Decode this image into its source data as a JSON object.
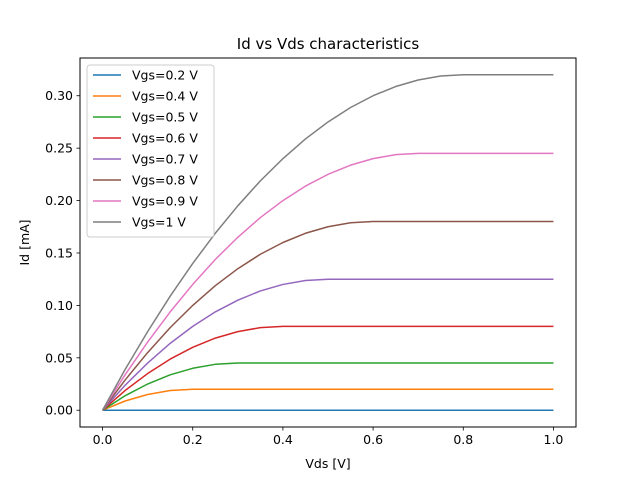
{
  "chart_data": {
    "type": "line",
    "title": "Id vs Vds characteristics",
    "xlabel": "Vds [V]",
    "ylabel": "Id [mA]",
    "xlim": [
      -0.05,
      1.05
    ],
    "ylim": [
      -0.016,
      0.336
    ],
    "x_ticks": [
      0.0,
      0.2,
      0.4,
      0.6,
      0.8,
      1.0
    ],
    "x_tick_labels": [
      "0.0",
      "0.2",
      "0.4",
      "0.6",
      "0.8",
      "1.0"
    ],
    "y_ticks": [
      0.0,
      0.05,
      0.1,
      0.15,
      0.2,
      0.25,
      0.3
    ],
    "y_tick_labels": [
      "0.00",
      "0.05",
      "0.10",
      "0.15",
      "0.20",
      "0.25",
      "0.30"
    ],
    "grid": false,
    "legend_position": "top-left",
    "x": [
      0.0,
      0.05,
      0.1,
      0.15,
      0.2,
      0.25,
      0.3,
      0.35,
      0.4,
      0.45,
      0.5,
      0.55,
      0.6,
      0.65,
      0.7,
      0.75,
      0.8,
      0.85,
      0.9,
      0.95,
      1.0
    ],
    "series": [
      {
        "name": "Vgs=0.2 V",
        "color": "#1f77b4",
        "values": [
          0.0,
          0.0,
          0.0,
          0.0,
          0.0,
          0.0,
          0.0,
          0.0,
          0.0,
          0.0,
          0.0,
          0.0,
          0.0,
          0.0,
          0.0,
          0.0,
          0.0,
          0.0,
          0.0,
          0.0,
          0.0
        ]
      },
      {
        "name": "Vgs=0.4 V",
        "color": "#ff7f0e",
        "values": [
          0.0,
          0.0088,
          0.015,
          0.0188,
          0.02,
          0.02,
          0.02,
          0.02,
          0.02,
          0.02,
          0.02,
          0.02,
          0.02,
          0.02,
          0.02,
          0.02,
          0.02,
          0.02,
          0.02,
          0.02,
          0.02
        ]
      },
      {
        "name": "Vgs=0.5 V",
        "color": "#2ca02c",
        "values": [
          0.0,
          0.0138,
          0.025,
          0.0338,
          0.04,
          0.0438,
          0.045,
          0.045,
          0.045,
          0.045,
          0.045,
          0.045,
          0.045,
          0.045,
          0.045,
          0.045,
          0.045,
          0.045,
          0.045,
          0.045,
          0.045
        ]
      },
      {
        "name": "Vgs=0.6 V",
        "color": "#d62728",
        "values": [
          0.0,
          0.0188,
          0.035,
          0.0488,
          0.06,
          0.0688,
          0.075,
          0.0788,
          0.08,
          0.08,
          0.08,
          0.08,
          0.08,
          0.08,
          0.08,
          0.08,
          0.08,
          0.08,
          0.08,
          0.08,
          0.08
        ]
      },
      {
        "name": "Vgs=0.7 V",
        "color": "#9467bd",
        "values": [
          0.0,
          0.0238,
          0.045,
          0.0638,
          0.08,
          0.0938,
          0.105,
          0.1138,
          0.12,
          0.1238,
          0.125,
          0.125,
          0.125,
          0.125,
          0.125,
          0.125,
          0.125,
          0.125,
          0.125,
          0.125,
          0.125
        ]
      },
      {
        "name": "Vgs=0.8 V",
        "color": "#8c564b",
        "values": [
          0.0,
          0.0288,
          0.055,
          0.0788,
          0.1,
          0.1188,
          0.135,
          0.1488,
          0.16,
          0.1688,
          0.175,
          0.1788,
          0.18,
          0.18,
          0.18,
          0.18,
          0.18,
          0.18,
          0.18,
          0.18,
          0.18
        ]
      },
      {
        "name": "Vgs=0.9 V",
        "color": "#e377c2",
        "values": [
          0.0,
          0.0338,
          0.065,
          0.0938,
          0.12,
          0.1438,
          0.165,
          0.1838,
          0.2,
          0.2138,
          0.225,
          0.2338,
          0.24,
          0.2438,
          0.245,
          0.245,
          0.245,
          0.245,
          0.245,
          0.245,
          0.245
        ]
      },
      {
        "name": "Vgs=1 V",
        "color": "#7f7f7f",
        "values": [
          0.0,
          0.0388,
          0.075,
          0.1088,
          0.14,
          0.1688,
          0.195,
          0.2188,
          0.24,
          0.2588,
          0.275,
          0.2888,
          0.3,
          0.3088,
          0.315,
          0.3188,
          0.32,
          0.32,
          0.32,
          0.32,
          0.32
        ]
      }
    ]
  }
}
